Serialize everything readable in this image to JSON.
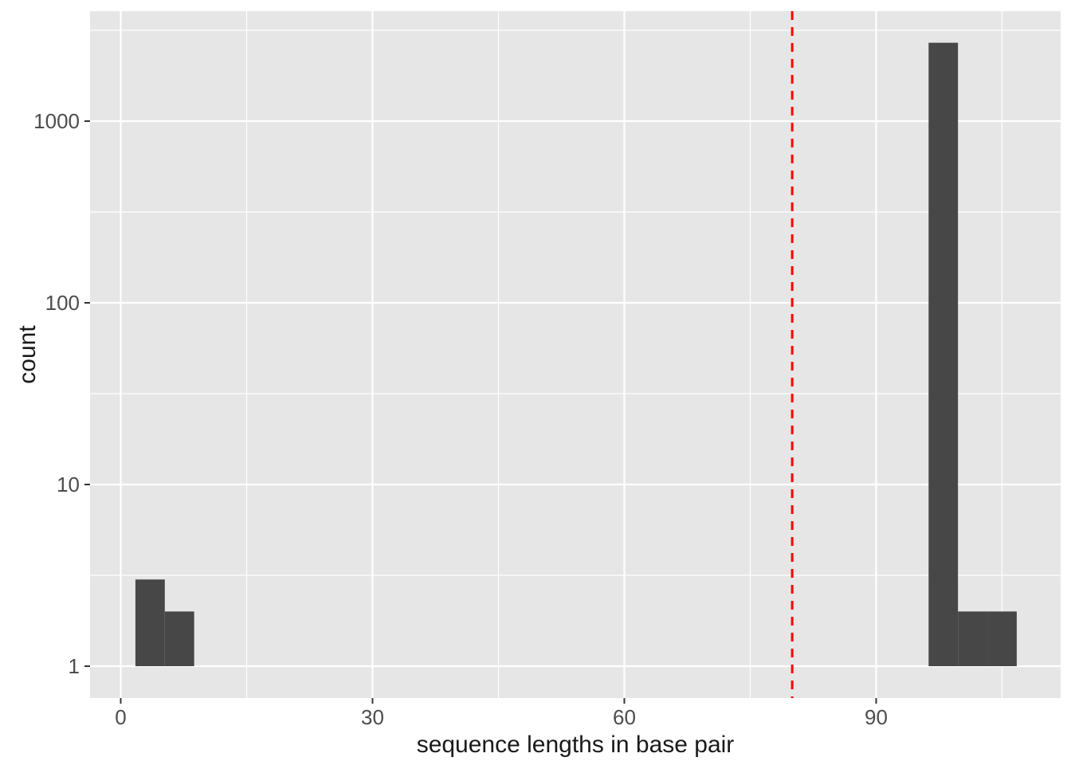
{
  "chart_data": {
    "type": "bar",
    "subtype": "histogram-log-y",
    "title": "",
    "xlabel": "sequence lengths in base pair",
    "ylabel": "count",
    "x_scale": "linear",
    "y_scale": "log10",
    "xlim": [
      -3.7,
      112.0
    ],
    "ylim": [
      0.67,
      4000
    ],
    "grid": true,
    "legend_position": "none",
    "binwidth": 3.5,
    "x_ticks": [
      {
        "value": 0,
        "label": "0"
      },
      {
        "value": 30,
        "label": "30"
      },
      {
        "value": 60,
        "label": "60"
      },
      {
        "value": 90,
        "label": "90"
      }
    ],
    "x_minor_ticks": [
      15,
      45,
      75,
      105
    ],
    "y_ticks": [
      {
        "value": 1,
        "label": "1"
      },
      {
        "value": 10,
        "label": "10"
      },
      {
        "value": 100,
        "label": "100"
      },
      {
        "value": 1000,
        "label": "1000"
      }
    ],
    "y_minor_ticks": [
      3.1623,
      31.623,
      316.23,
      3162.3
    ],
    "bars": [
      {
        "x_start": 1.75,
        "x_end": 5.25,
        "count": 3
      },
      {
        "x_start": 5.25,
        "x_end": 8.75,
        "count": 2
      },
      {
        "x_start": 96.25,
        "x_end": 99.75,
        "count": 2700
      },
      {
        "x_start": 99.75,
        "x_end": 103.25,
        "count": 2
      },
      {
        "x_start": 103.25,
        "x_end": 106.75,
        "count": 2
      }
    ],
    "vline": {
      "x": 80,
      "style": "dashed",
      "color": "#FF0000"
    },
    "colors": {
      "bar_fill": "#474747",
      "panel_bg": "#E6E6E6",
      "grid_major": "#FFFFFF",
      "grid_minor": "#FFFFFF",
      "tick_mark": "#333333",
      "tick_label": "#4D4D4D",
      "axis_title": "#1A1A1A",
      "outer_bg": "#FFFFFF"
    }
  }
}
